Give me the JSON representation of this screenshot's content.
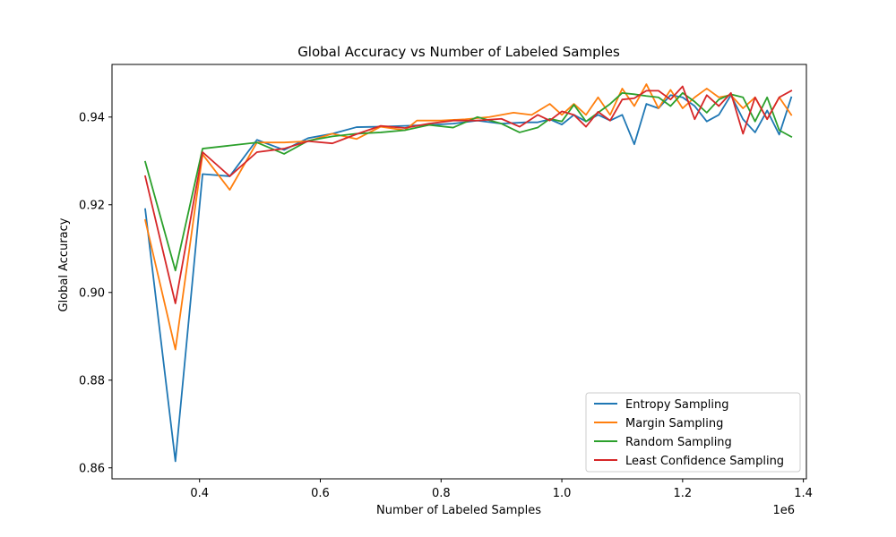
{
  "chart_data": {
    "type": "line",
    "title": "Global Accuracy vs Number of Labeled Samples",
    "xlabel": "Number of Labeled Samples",
    "ylabel": "Global Accuracy",
    "x_offset_label": "1e6",
    "xlim": [
      0.255,
      1.405
    ],
    "ylim": [
      0.8575,
      0.952
    ],
    "x_ticks": [
      0.4,
      0.6,
      0.8,
      1.0,
      1.2,
      1.4
    ],
    "x_tick_labels": [
      "0.4",
      "0.6",
      "0.8",
      "1.0",
      "1.2",
      "1.4"
    ],
    "y_ticks": [
      0.86,
      0.88,
      0.9,
      0.92,
      0.94
    ],
    "y_tick_labels": [
      "0.86",
      "0.88",
      "0.90",
      "0.92",
      "0.94"
    ],
    "grid": false,
    "legend_position": "lower-right",
    "series": [
      {
        "name": "Entropy Sampling",
        "color": "#1f77b4",
        "x": [
          0.31,
          0.36,
          0.405,
          0.45,
          0.495,
          0.54,
          0.58,
          0.62,
          0.66,
          0.7,
          0.74,
          0.78,
          0.82,
          0.86,
          0.9,
          0.94,
          0.96,
          0.98,
          1.0,
          1.02,
          1.04,
          1.06,
          1.08,
          1.1,
          1.12,
          1.14,
          1.16,
          1.18,
          1.2,
          1.22,
          1.24,
          1.26,
          1.28,
          1.3,
          1.32,
          1.34,
          1.36,
          1.38
        ],
        "y": [
          0.919,
          0.8615,
          0.927,
          0.9265,
          0.9348,
          0.9325,
          0.9352,
          0.9362,
          0.9377,
          0.9378,
          0.938,
          0.9382,
          0.9385,
          0.9392,
          0.9385,
          0.9388,
          0.9388,
          0.9395,
          0.9383,
          0.9405,
          0.939,
          0.9405,
          0.9392,
          0.9405,
          0.9338,
          0.943,
          0.942,
          0.945,
          0.9445,
          0.9425,
          0.939,
          0.9405,
          0.945,
          0.9395,
          0.9365,
          0.9415,
          0.936,
          0.9445
        ]
      },
      {
        "name": "Margin Sampling",
        "color": "#ff7f0e",
        "x": [
          0.31,
          0.36,
          0.405,
          0.45,
          0.495,
          0.54,
          0.58,
          0.62,
          0.66,
          0.7,
          0.74,
          0.76,
          0.8,
          0.84,
          0.88,
          0.92,
          0.95,
          0.98,
          1.0,
          1.02,
          1.04,
          1.06,
          1.08,
          1.1,
          1.12,
          1.14,
          1.16,
          1.18,
          1.2,
          1.22,
          1.24,
          1.26,
          1.28,
          1.3,
          1.32,
          1.34,
          1.36,
          1.38
        ],
        "y": [
          0.9165,
          0.887,
          0.9315,
          0.9234,
          0.9342,
          0.9342,
          0.9345,
          0.9362,
          0.935,
          0.9378,
          0.937,
          0.9392,
          0.9392,
          0.9395,
          0.94,
          0.941,
          0.9405,
          0.943,
          0.9405,
          0.943,
          0.9405,
          0.9445,
          0.9405,
          0.9465,
          0.9425,
          0.9475,
          0.942,
          0.9462,
          0.942,
          0.9445,
          0.9465,
          0.9445,
          0.945,
          0.942,
          0.9445,
          0.9395,
          0.9445,
          0.9405
        ]
      },
      {
        "name": "Random Sampling",
        "color": "#2ca02c",
        "x": [
          0.31,
          0.36,
          0.405,
          0.45,
          0.495,
          0.54,
          0.58,
          0.62,
          0.66,
          0.7,
          0.74,
          0.78,
          0.82,
          0.86,
          0.9,
          0.93,
          0.96,
          0.98,
          1.0,
          1.02,
          1.04,
          1.06,
          1.08,
          1.1,
          1.12,
          1.14,
          1.16,
          1.18,
          1.2,
          1.22,
          1.24,
          1.26,
          1.28,
          1.3,
          1.32,
          1.34,
          1.36,
          1.38
        ],
        "y": [
          0.9298,
          0.905,
          0.9328,
          0.9335,
          0.9342,
          0.9316,
          0.9346,
          0.9356,
          0.9362,
          0.9365,
          0.937,
          0.9382,
          0.9376,
          0.94,
          0.9385,
          0.9365,
          0.9376,
          0.9396,
          0.939,
          0.9428,
          0.939,
          0.941,
          0.943,
          0.9455,
          0.9452,
          0.9448,
          0.9445,
          0.9425,
          0.9455,
          0.9435,
          0.941,
          0.944,
          0.9452,
          0.9445,
          0.939,
          0.9445,
          0.937,
          0.9355
        ]
      },
      {
        "name": "Least Confidence Sampling",
        "color": "#d62728",
        "x": [
          0.31,
          0.36,
          0.405,
          0.45,
          0.495,
          0.54,
          0.58,
          0.62,
          0.66,
          0.7,
          0.74,
          0.78,
          0.82,
          0.86,
          0.9,
          0.93,
          0.96,
          0.98,
          1.0,
          1.02,
          1.04,
          1.06,
          1.08,
          1.1,
          1.12,
          1.14,
          1.16,
          1.18,
          1.2,
          1.22,
          1.24,
          1.26,
          1.28,
          1.3,
          1.32,
          1.34,
          1.36,
          1.38
        ],
        "y": [
          0.9265,
          0.8975,
          0.932,
          0.9265,
          0.932,
          0.9328,
          0.9345,
          0.934,
          0.9361,
          0.938,
          0.9375,
          0.9385,
          0.9392,
          0.9392,
          0.9396,
          0.9378,
          0.9405,
          0.9392,
          0.9413,
          0.9405,
          0.9378,
          0.9412,
          0.9392,
          0.944,
          0.9443,
          0.946,
          0.946,
          0.944,
          0.947,
          0.9395,
          0.945,
          0.9425,
          0.9455,
          0.9362,
          0.9445,
          0.9395,
          0.9445,
          0.946
        ]
      }
    ]
  }
}
